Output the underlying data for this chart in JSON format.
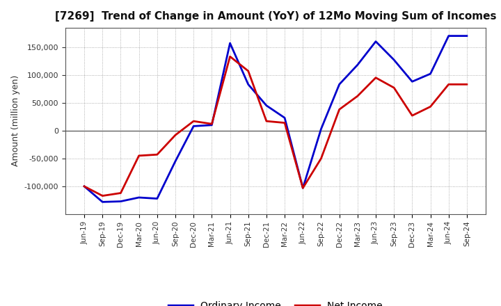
{
  "title": "[7269]  Trend of Change in Amount (YoY) of 12Mo Moving Sum of Incomes",
  "ylabel": "Amount (million yen)",
  "background_color": "#ffffff",
  "grid_color": "#999999",
  "x_labels": [
    "Jun-19",
    "Sep-19",
    "Dec-19",
    "Mar-20",
    "Jun-20",
    "Sep-20",
    "Dec-20",
    "Mar-21",
    "Jun-21",
    "Sep-21",
    "Dec-21",
    "Mar-22",
    "Jun-22",
    "Sep-22",
    "Dec-22",
    "Mar-23",
    "Jun-23",
    "Sep-23",
    "Dec-23",
    "Mar-24",
    "Jun-24",
    "Sep-24"
  ],
  "ordinary_income": [
    -100000,
    -128000,
    -127000,
    -120000,
    -122000,
    -55000,
    8000,
    10000,
    157000,
    83000,
    45000,
    23000,
    -103000,
    3000,
    83000,
    118000,
    160000,
    127000,
    88000,
    102000,
    170000,
    170000
  ],
  "net_income": [
    -100000,
    -117000,
    -112000,
    -45000,
    -43000,
    -8000,
    17000,
    12000,
    133000,
    107000,
    17000,
    14000,
    -103000,
    -50000,
    38000,
    62000,
    95000,
    77000,
    27000,
    43000,
    83000,
    83000
  ],
  "ordinary_color": "#0000cc",
  "net_color": "#cc0000",
  "line_width": 2.0,
  "ylim": [
    -150000,
    185000
  ],
  "yticks": [
    -100000,
    -50000,
    0,
    50000,
    100000,
    150000
  ],
  "legend_labels": [
    "Ordinary Income",
    "Net Income"
  ]
}
